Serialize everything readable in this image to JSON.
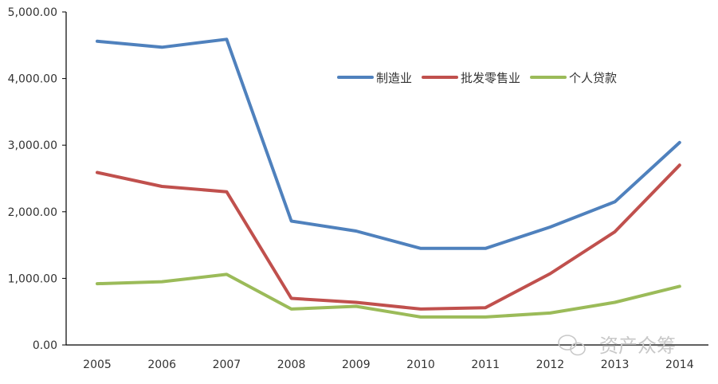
{
  "chart_data": {
    "type": "line",
    "x": [
      "2005",
      "2006",
      "2007",
      "2008",
      "2009",
      "2010",
      "2011",
      "2012",
      "2013",
      "2014"
    ],
    "y_ticks": [
      "0.00",
      "1,000.00",
      "2,000.00",
      "3,000.00",
      "4,000.00",
      "5,000.00"
    ],
    "ylim": [
      0,
      5000
    ],
    "grid": false,
    "legend_position": "top-right",
    "series": [
      {
        "name": "制造业",
        "color": "#4f81bd",
        "values": [
          4560,
          4470,
          4590,
          1860,
          1710,
          1450,
          1450,
          1770,
          2150,
          3040
        ]
      },
      {
        "name": "批发零售业",
        "color": "#c0504d",
        "values": [
          2590,
          2380,
          2300,
          700,
          640,
          540,
          560,
          1070,
          1700,
          2700
        ]
      },
      {
        "name": "个人贷款",
        "color": "#9bbb59",
        "values": [
          920,
          950,
          1060,
          540,
          580,
          420,
          420,
          480,
          640,
          880
        ]
      }
    ]
  },
  "watermark": {
    "text": "资产众筹",
    "icon": "wechat-icon"
  }
}
